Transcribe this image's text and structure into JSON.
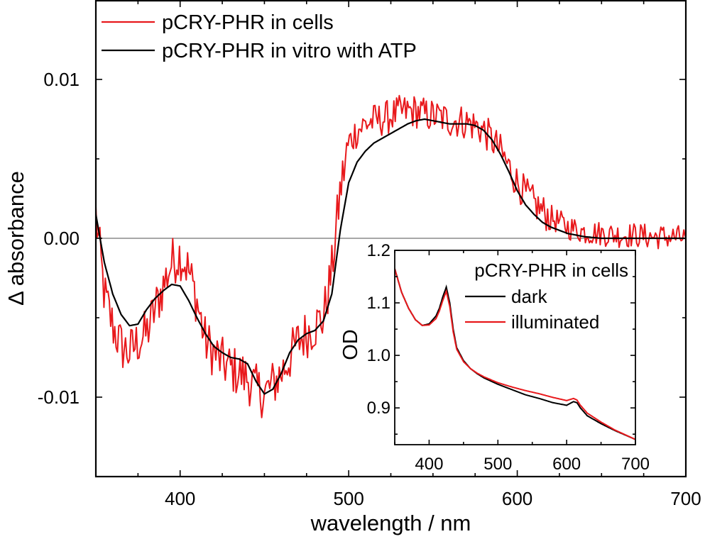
{
  "chart_data": [
    {
      "type": "line",
      "xlabel": "wavelength / nm",
      "ylabel": "Δ absorbance",
      "xlim": [
        350,
        700
      ],
      "ylim": [
        -0.015,
        0.015
      ],
      "xticks": [
        400,
        500,
        600,
        700
      ],
      "xtick_labels": [
        "400",
        "500",
        "600",
        "700"
      ],
      "yticks": [
        -0.01,
        0.0,
        0.01
      ],
      "ytick_labels": [
        "-0.01",
        "0.00",
        "0.01"
      ],
      "grid": false,
      "legend_position": "top-left",
      "zero_line": true,
      "series": [
        {
          "name": "pCRY-PHR in cells",
          "color": "#e8191c",
          "noisy": true,
          "x": [
            350,
            355,
            360,
            365,
            370,
            375,
            380,
            385,
            390,
            395,
            400,
            405,
            410,
            415,
            420,
            425,
            430,
            435,
            440,
            445,
            450,
            455,
            460,
            465,
            470,
            475,
            480,
            485,
            490,
            495,
            500,
            505,
            510,
            515,
            520,
            525,
            530,
            535,
            540,
            545,
            550,
            555,
            560,
            565,
            570,
            575,
            580,
            585,
            590,
            595,
            600,
            605,
            610,
            615,
            620,
            625,
            630,
            640,
            650,
            660,
            670,
            680,
            690,
            700
          ],
          "y": [
            0.0015,
            -0.0035,
            -0.0055,
            -0.0068,
            -0.0072,
            -0.0065,
            -0.006,
            -0.0045,
            -0.003,
            -0.0015,
            -0.001,
            -0.002,
            -0.004,
            -0.0065,
            -0.0072,
            -0.0078,
            -0.0082,
            -0.0085,
            -0.0088,
            -0.0095,
            -0.0098,
            -0.0092,
            -0.0085,
            -0.0075,
            -0.0065,
            -0.006,
            -0.0055,
            -0.005,
            -0.002,
            0.003,
            0.006,
            0.0068,
            0.0072,
            0.0074,
            0.0075,
            0.0077,
            0.0079,
            0.008,
            0.008,
            0.0078,
            0.0077,
            0.0076,
            0.0074,
            0.0074,
            0.0073,
            0.0071,
            0.0068,
            0.0062,
            0.0055,
            0.0045,
            0.0035,
            0.0028,
            0.0022,
            0.0017,
            0.0013,
            0.001,
            0.0007,
            0.0004,
            0.0003,
            0.0002,
            0.0002,
            0.0001,
            0.0001,
            0.0
          ]
        },
        {
          "name": "pCRY-PHR in vitro with ATP",
          "color": "#000000",
          "noisy": false,
          "x": [
            350,
            355,
            360,
            365,
            370,
            375,
            380,
            385,
            390,
            395,
            400,
            405,
            410,
            415,
            420,
            425,
            430,
            435,
            440,
            445,
            450,
            455,
            460,
            465,
            470,
            475,
            480,
            485,
            490,
            495,
            500,
            505,
            510,
            515,
            520,
            525,
            530,
            535,
            540,
            545,
            550,
            555,
            560,
            565,
            570,
            575,
            580,
            585,
            590,
            595,
            600,
            605,
            610,
            615,
            620,
            625,
            630,
            640,
            650,
            660,
            670,
            680,
            690,
            700
          ],
          "y": [
            0.0015,
            -0.0015,
            -0.0035,
            -0.0048,
            -0.0055,
            -0.0054,
            -0.0045,
            -0.0038,
            -0.0033,
            -0.0029,
            -0.003,
            -0.0039,
            -0.005,
            -0.006,
            -0.0068,
            -0.0072,
            -0.0075,
            -0.0076,
            -0.0079,
            -0.009,
            -0.0098,
            -0.0095,
            -0.0085,
            -0.0072,
            -0.0064,
            -0.006,
            -0.0058,
            -0.0052,
            -0.0035,
            0.0005,
            0.0035,
            0.0048,
            0.0055,
            0.006,
            0.0063,
            0.0066,
            0.0069,
            0.0072,
            0.0074,
            0.0075,
            0.0074,
            0.0073,
            0.0072,
            0.0072,
            0.0072,
            0.0071,
            0.0068,
            0.0062,
            0.0053,
            0.0042,
            0.003,
            0.0021,
            0.0015,
            0.001,
            0.0007,
            0.0005,
            0.0003,
            0.0001,
            0.0,
            0.0,
            0.0,
            0.0,
            0.0,
            0.0
          ]
        }
      ]
    },
    {
      "type": "line",
      "inset": true,
      "xlabel": "",
      "ylabel": "OD",
      "xlim": [
        350,
        700
      ],
      "ylim": [
        0.83,
        1.2
      ],
      "xticks": [
        400,
        500,
        600,
        700
      ],
      "xtick_labels": [
        "400",
        "500",
        "600",
        "700"
      ],
      "yticks": [
        0.9,
        1.0,
        1.1,
        1.2
      ],
      "ytick_labels": [
        "0.9",
        "1.0",
        "1.1",
        "1.2"
      ],
      "legend_title": "pCRY-PHR in cells",
      "legend_position": "top-right",
      "series": [
        {
          "name": "dark",
          "color": "#000000",
          "x": [
            350,
            360,
            370,
            380,
            390,
            400,
            410,
            415,
            420,
            425,
            430,
            435,
            440,
            450,
            460,
            470,
            480,
            500,
            520,
            540,
            560,
            580,
            600,
            610,
            615,
            620,
            630,
            650,
            670,
            700
          ],
          "y": [
            1.165,
            1.12,
            1.09,
            1.068,
            1.057,
            1.06,
            1.075,
            1.09,
            1.112,
            1.13,
            1.1,
            1.05,
            1.015,
            0.99,
            0.975,
            0.965,
            0.957,
            0.945,
            0.935,
            0.925,
            0.918,
            0.91,
            0.905,
            0.912,
            0.91,
            0.9,
            0.885,
            0.87,
            0.857,
            0.84
          ]
        },
        {
          "name": "illuminated",
          "color": "#e8191c",
          "x": [
            350,
            360,
            370,
            380,
            390,
            400,
            410,
            415,
            420,
            425,
            430,
            435,
            440,
            450,
            460,
            470,
            480,
            500,
            520,
            540,
            560,
            580,
            600,
            610,
            615,
            620,
            630,
            650,
            670,
            700
          ],
          "y": [
            1.165,
            1.12,
            1.09,
            1.068,
            1.057,
            1.058,
            1.07,
            1.085,
            1.105,
            1.122,
            1.093,
            1.045,
            1.012,
            0.988,
            0.975,
            0.966,
            0.959,
            0.948,
            0.94,
            0.933,
            0.927,
            0.92,
            0.914,
            0.918,
            0.915,
            0.905,
            0.89,
            0.873,
            0.858,
            0.84
          ]
        }
      ]
    }
  ]
}
